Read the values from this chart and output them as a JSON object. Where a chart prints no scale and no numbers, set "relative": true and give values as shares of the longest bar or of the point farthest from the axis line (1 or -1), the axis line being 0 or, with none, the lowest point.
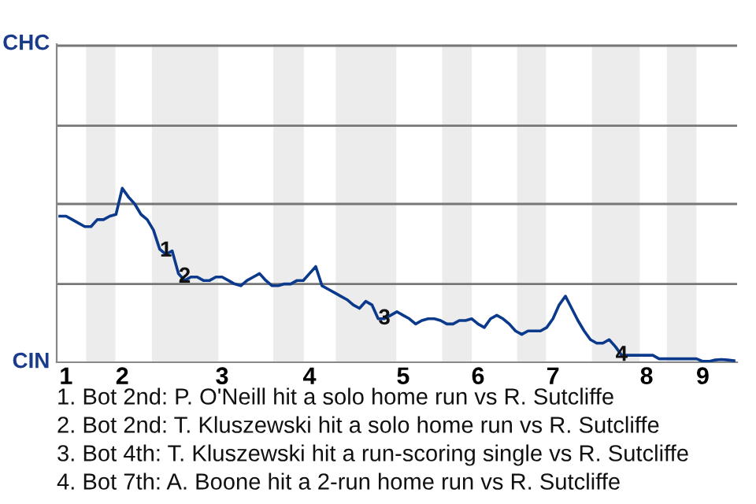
{
  "chart_data": {
    "type": "line",
    "relative": true,
    "categories": [
      null,
      "1",
      null,
      null,
      null,
      null,
      null,
      null,
      null,
      null,
      "2",
      null,
      null,
      null,
      null,
      null,
      null,
      null,
      null,
      null,
      null,
      null,
      null,
      null,
      null,
      null,
      "3",
      null,
      null,
      null,
      null,
      null,
      null,
      null,
      null,
      null,
      null,
      null,
      null,
      null,
      "4",
      null,
      null,
      null,
      null,
      null,
      null,
      null,
      null,
      null,
      null,
      null,
      null,
      null,
      null,
      "5",
      null,
      null,
      null,
      null,
      null,
      null,
      null,
      null,
      null,
      null,
      null,
      "6",
      null,
      null,
      null,
      null,
      null,
      null,
      null,
      null,
      null,
      null,
      null,
      "7",
      null,
      null,
      null,
      null,
      null,
      null,
      null,
      null,
      null,
      null,
      null,
      null,
      null,
      null,
      "8",
      null,
      null,
      null,
      null,
      null,
      null,
      null,
      null,
      "9",
      null,
      null,
      null,
      null,
      null
    ],
    "series": [
      {
        "color": "#0b3a8c",
        "values": [
          0.84,
          0.84,
          0.82,
          0.8,
          0.78,
          0.78,
          0.82,
          0.82,
          0.84,
          0.85,
          1,
          0.95,
          0.91,
          0.85,
          0.82,
          0.76,
          0.65,
          0.62,
          0.64,
          0.51,
          0.47,
          0.49,
          0.49,
          0.47,
          0.47,
          0.49,
          0.49,
          0.47,
          0.45,
          0.44,
          0.47,
          0.49,
          0.51,
          0.47,
          0.44,
          0.44,
          0.45,
          0.45,
          0.47,
          0.47,
          0.51,
          0.55,
          0.44,
          0.42,
          0.4,
          0.38,
          0.36,
          0.33,
          0.31,
          0.35,
          0.33,
          0.25,
          0.25,
          0.27,
          0.29,
          0.27,
          0.25,
          0.22,
          0.24,
          0.25,
          0.25,
          0.24,
          0.22,
          0.22,
          0.24,
          0.24,
          0.25,
          0.22,
          0.2,
          0.25,
          0.27,
          0.25,
          0.22,
          0.18,
          0.16,
          0.18,
          0.18,
          0.18,
          0.2,
          0.25,
          0.33,
          0.38,
          0.31,
          0.24,
          0.18,
          0.13,
          0.11,
          0.11,
          0.13,
          0.09,
          0.04,
          0.04,
          0.04,
          0.04,
          0.04,
          0.04,
          0.02,
          0.02,
          0.02,
          0.02,
          0.02,
          0.02,
          0.02,
          0.005,
          0.005,
          0.013,
          0.016,
          0.013,
          0.009
        ],
        "line_style": "solid"
      }
    ],
    "ref_lines": [
      {
        "axis": "y",
        "value": 0.45,
        "color": "#777777"
      },
      {
        "axis": "y",
        "value": 0.91,
        "color": "#777777"
      },
      {
        "axis": "y",
        "value": 1.36,
        "color": "#777777"
      },
      {
        "axis": "y",
        "value": 1.82,
        "color": "#777777"
      }
    ],
    "annotations": [
      "CHC",
      "CIN",
      {
        "text": "1",
        "y": 0.64
      },
      {
        "text": "2",
        "y": 0.49
      },
      {
        "text": "3",
        "y": 0.25
      },
      {
        "text": "4",
        "y": 0.04
      },
      "1. Bot 2nd: P. O'Neill hit a solo home run vs R. Sutcliffe",
      "2. Bot 2nd: T. Kluszewski hit a solo home run vs R. Sutcliffe",
      "3. Bot 4th: T. Kluszewski hit a run-scoring single vs R. Sutcliffe",
      "4. Bot 7th: A. Boone hit a 2-run home run vs R. Sutcliffe"
    ]
  }
}
